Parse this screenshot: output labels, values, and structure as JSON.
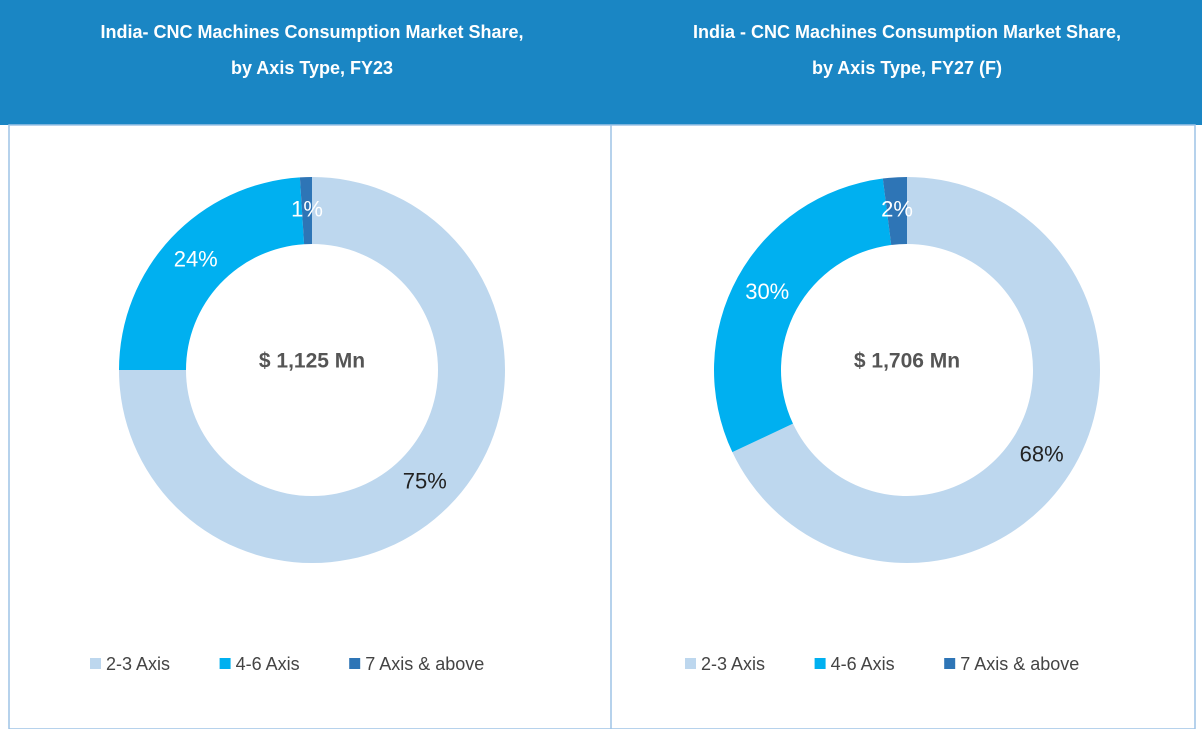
{
  "chart_data": [
    {
      "type": "pie",
      "donut": true,
      "title": [
        "India- CNC Machines Consumption Market Share,",
        "by Axis Type, FY23"
      ],
      "center_label": "$ 1,125 Mn",
      "categories": [
        "2-3 Axis",
        "4-6 Axis",
        "7 Axis & above"
      ],
      "values": [
        75,
        24,
        1
      ],
      "value_labels": [
        "75%",
        "24%",
        "1%"
      ],
      "colors": [
        "#bdd7ee",
        "#00b0f0",
        "#2e75b6"
      ]
    },
    {
      "type": "pie",
      "donut": true,
      "title": [
        "India - CNC Machines Consumption Market Share,",
        "by Axis Type, FY27 (F)"
      ],
      "center_label": "$ 1,706 Mn",
      "categories": [
        "2-3 Axis",
        "4-6 Axis",
        "7 Axis & above"
      ],
      "values": [
        68,
        30,
        2
      ],
      "value_labels": [
        "68%",
        "30%",
        "2%"
      ],
      "colors": [
        "#bdd7ee",
        "#00b0f0",
        "#2e75b6"
      ]
    }
  ]
}
